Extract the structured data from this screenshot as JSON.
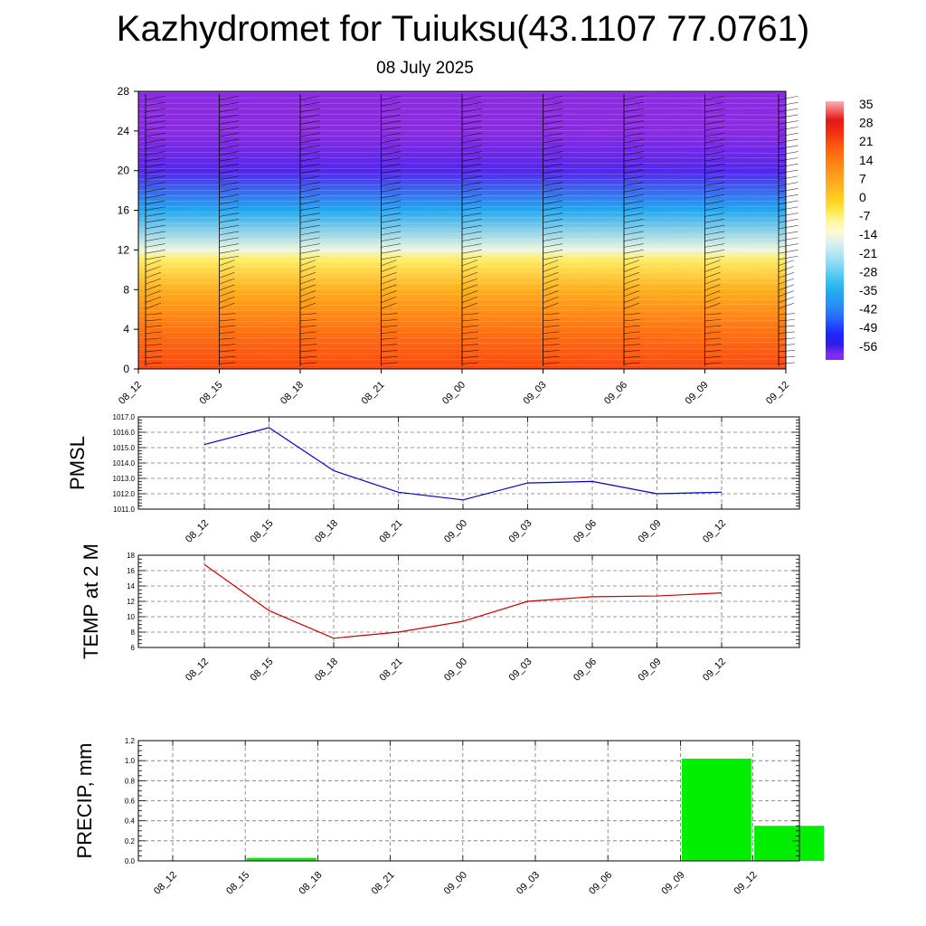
{
  "title": "Kazhydromet for Tuiuksu(43.1107 77.0761)",
  "subtitle": "08 July 2025",
  "chart_data": [
    {
      "type": "heatmap",
      "description_axes": "height vs time cross-section with wind barbs",
      "x_ticks": [
        "08_12",
        "08_15",
        "08_18",
        "08_21",
        "09_00",
        "09_03",
        "09_06",
        "09_09",
        "09_12"
      ],
      "y_ticks": [
        0,
        4,
        8,
        12,
        16,
        20,
        24,
        28
      ],
      "ylim": [
        0,
        28
      ],
      "colorbar": {
        "labels": [
          "35",
          "28",
          "21",
          "14",
          "7",
          "0",
          "-7",
          "-14",
          "-21",
          "-28",
          "-35",
          "-42",
          "-49",
          "-56"
        ],
        "range": [
          -60,
          37
        ]
      },
      "temperature_profile": [
        {
          "height": 0,
          "value": 22
        },
        {
          "height": 4,
          "value": 16
        },
        {
          "height": 8,
          "value": 6
        },
        {
          "height": 11,
          "value": -5
        },
        {
          "height": 12,
          "value": -14
        },
        {
          "height": 16,
          "value": -35
        },
        {
          "height": 20,
          "value": -56
        },
        {
          "height": 24,
          "value": -62
        },
        {
          "height": 28,
          "value": -62
        }
      ]
    },
    {
      "type": "line",
      "ylabel": "PMSL",
      "x": [
        "08_12",
        "08_15",
        "08_18",
        "08_21",
        "09_00",
        "09_03",
        "09_06",
        "09_09",
        "09_12"
      ],
      "y_ticks": [
        "1011.0",
        "1012.0",
        "1013.0",
        "1014.0",
        "1015.0",
        "1016.0",
        "1017.0"
      ],
      "ylim": [
        1011.0,
        1017.0
      ],
      "values": [
        1015.2,
        1016.3,
        1013.5,
        1012.1,
        1011.6,
        1012.7,
        1012.8,
        1012.0,
        1012.1
      ],
      "color": "#0000cc"
    },
    {
      "type": "line",
      "ylabel": "TEMP at 2 M",
      "x": [
        "08_12",
        "08_15",
        "08_18",
        "08_21",
        "09_00",
        "09_03",
        "09_06",
        "09_09",
        "09_12"
      ],
      "y_ticks": [
        "6",
        "8",
        "10",
        "12",
        "14",
        "16",
        "18"
      ],
      "ylim": [
        6,
        18
      ],
      "values": [
        16.8,
        10.8,
        7.2,
        8.0,
        9.4,
        12.0,
        12.6,
        12.7,
        13.1
      ],
      "color": "#cc0000"
    },
    {
      "type": "bar",
      "ylabel": "PRECIP, mm",
      "categories": [
        "08_12",
        "08_15",
        "08_18",
        "08_21",
        "09_00",
        "09_03",
        "09_06",
        "09_09",
        "09_12"
      ],
      "y_ticks": [
        "0.0",
        "0.2",
        "0.4",
        "0.6",
        "0.8",
        "1.0",
        "1.2"
      ],
      "ylim": [
        0,
        1.2
      ],
      "values": [
        0.0,
        0.03,
        0.0,
        0.0,
        0.0,
        0.0,
        0.0,
        1.02,
        0.35
      ],
      "color": "#00ee00"
    }
  ]
}
